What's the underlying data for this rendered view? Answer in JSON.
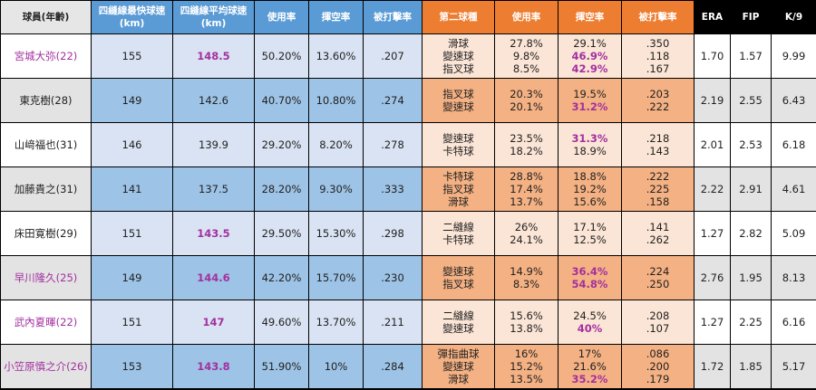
{
  "table": {
    "highlight_color": "#a3309f",
    "columns": [
      "球員(年齡)",
      "四縫線最快球速(km)",
      "四縫線平均球速(km)",
      "使用率",
      "揮空率",
      "被打擊率",
      "第二球種",
      "使用率",
      "揮空率",
      "被打擊率",
      "ERA",
      "FIP",
      "K/9"
    ],
    "rows": [
      {
        "cells": [
          "宮城大弥(22)",
          "155",
          "148.5",
          "50.20%",
          "13.60%",
          ".207",
          [
            "滑球",
            "變速球",
            "指叉球"
          ],
          [
            "27.8%",
            "9.8%",
            "8.5%"
          ],
          [
            "29.1%",
            "46.9%",
            "42.9%"
          ],
          [
            ".350",
            ".118",
            ".167"
          ],
          "1.70",
          "1.57",
          "9.99"
        ],
        "highlight": [
          "0",
          "2",
          "8.1",
          "8.2"
        ]
      },
      {
        "cells": [
          "東克樹(28)",
          "149",
          "142.6",
          "40.70%",
          "10.80%",
          ".274",
          [
            "指叉球",
            "變速球"
          ],
          [
            "20.3%",
            "20.1%"
          ],
          [
            "19.5%",
            "31.2%"
          ],
          [
            ".203",
            ".222"
          ],
          "2.19",
          "2.55",
          "6.43"
        ],
        "highlight": [
          "8.1"
        ]
      },
      {
        "cells": [
          "山﨑福也(31)",
          "146",
          "139.9",
          "29.20%",
          "8.20%",
          ".278",
          [
            "變速球",
            "卡特球"
          ],
          [
            "23.5%",
            "18.2%"
          ],
          [
            "31.3%",
            "18.9%"
          ],
          [
            ".218",
            ".143"
          ],
          "2.01",
          "2.53",
          "6.18"
        ],
        "highlight": [
          "8.0"
        ]
      },
      {
        "cells": [
          "加藤貴之(31)",
          "141",
          "137.5",
          "28.20%",
          "9.30%",
          ".333",
          [
            "卡特球",
            "指叉球",
            "滑球"
          ],
          [
            "28.8%",
            "17.4%",
            "13.7%"
          ],
          [
            "18.8%",
            "19.2%",
            "15.6%"
          ],
          [
            ".222",
            ".225",
            ".158"
          ],
          "2.22",
          "2.91",
          "4.61"
        ],
        "highlight": []
      },
      {
        "cells": [
          "床田寛樹(29)",
          "151",
          "143.5",
          "29.50%",
          "15.30%",
          ".298",
          [
            "二縫線",
            "卡特球"
          ],
          [
            "26%",
            "24.1%"
          ],
          [
            "17.1%",
            "12.5%"
          ],
          [
            ".141",
            ".262"
          ],
          "1.27",
          "2.82",
          "5.09"
        ],
        "highlight": [
          "2"
        ]
      },
      {
        "cells": [
          "早川隆久(25)",
          "149",
          "144.6",
          "42.20%",
          "15.70%",
          ".230",
          [
            "變速球",
            "指叉球"
          ],
          [
            "14.9%",
            "8.3%"
          ],
          [
            "36.4%",
            "54.8%"
          ],
          [
            ".224",
            ".250"
          ],
          "2.76",
          "1.95",
          "8.13"
        ],
        "highlight": [
          "0",
          "2",
          "8.0",
          "8.1"
        ]
      },
      {
        "cells": [
          "武內夏暉(22)",
          "151",
          "147",
          "49.60%",
          "13.70%",
          ".211",
          [
            "二縫線",
            "變速球"
          ],
          [
            "15.6%",
            "13.8%"
          ],
          [
            "24.5%",
            "40%"
          ],
          [
            ".208",
            ".107"
          ],
          "1.27",
          "2.25",
          "6.16"
        ],
        "highlight": [
          "0",
          "2",
          "8.1"
        ]
      },
      {
        "cells": [
          "小笠原慎之介(26)",
          "153",
          "143.8",
          "51.90%",
          "10%",
          ".284",
          [
            "彈指曲球",
            "變速球",
            "滑球"
          ],
          [
            "16%",
            "15.2%",
            "13.5%"
          ],
          [
            "17%",
            "21.6%",
            "35.2%"
          ],
          [
            ".086",
            ".200",
            ".179"
          ],
          "1.72",
          "1.85",
          "5.17"
        ],
        "highlight": [
          "0",
          "2",
          "8.2"
        ]
      }
    ]
  }
}
